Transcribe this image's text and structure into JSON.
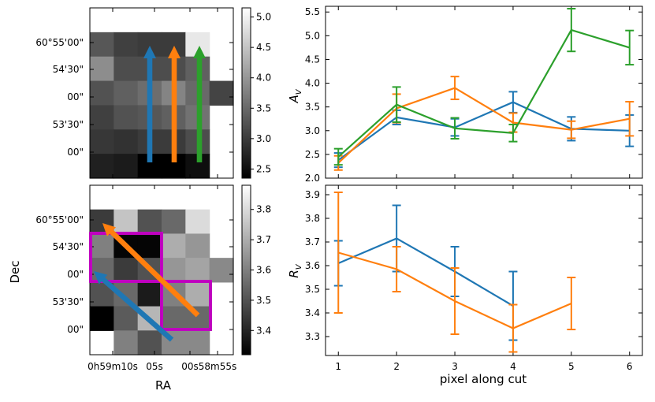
{
  "chart_data": [
    {
      "type": "heatmap",
      "panel": "top-left image",
      "colorbar": {
        "min": 2.35,
        "max": 5.15,
        "ticks": [
          "2.5",
          "3.0",
          "3.5",
          "4.0",
          "4.5",
          "5.0"
        ],
        "tick_values": [
          2.5,
          3.0,
          3.5,
          4.0,
          4.5,
          5.0
        ]
      },
      "dec_ticks": [
        "60°55'00\"",
        "54'30\"",
        "00\"",
        "53'30\"",
        "00\""
      ],
      "values": [
        [
          null,
          null,
          null,
          null,
          null,
          null
        ],
        [
          3.3,
          3.05,
          3.0,
          3.0,
          4.9,
          null
        ],
        [
          3.9,
          3.2,
          3.2,
          3.2,
          3.4,
          null
        ],
        [
          3.25,
          3.4,
          3.55,
          3.8,
          3.5,
          3.1
        ],
        [
          3.05,
          3.25,
          3.3,
          3.4,
          3.6,
          null
        ],
        [
          2.95,
          2.9,
          3.0,
          3.0,
          3.2,
          null
        ],
        [
          2.7,
          2.65,
          2.35,
          2.35,
          2.5,
          null
        ]
      ],
      "arrows": [
        {
          "color": "#1f77b4",
          "direction": "up"
        },
        {
          "color": "#ff7f0e",
          "direction": "up"
        },
        {
          "color": "#2ca02c",
          "direction": "up"
        }
      ]
    },
    {
      "type": "heatmap",
      "panel": "bottom-left image",
      "colorbar": {
        "min": 3.32,
        "max": 3.88,
        "ticks": [
          "3.4",
          "3.5",
          "3.6",
          "3.7",
          "3.8"
        ],
        "tick_values": [
          3.4,
          3.5,
          3.6,
          3.7,
          3.8
        ]
      },
      "dec_ticks": [
        "60°55'00\"",
        "54'30\"",
        "00\"",
        "53'30\"",
        "00\""
      ],
      "ra_ticks": [
        "0h59m10s",
        "05s",
        "00s",
        "58m55s"
      ],
      "xlabel": "RA",
      "ylabel": "Dec",
      "values": [
        [
          null,
          null,
          null,
          null,
          null,
          null
        ],
        [
          3.45,
          3.75,
          3.5,
          3.55,
          3.8,
          null
        ],
        [
          3.6,
          3.33,
          3.33,
          3.7,
          3.65,
          null
        ],
        [
          3.55,
          3.45,
          3.5,
          3.65,
          3.68,
          3.62
        ],
        [
          3.5,
          3.55,
          3.38,
          3.6,
          3.7,
          null
        ],
        [
          3.32,
          3.52,
          3.72,
          3.55,
          3.55,
          null
        ],
        [
          null,
          3.6,
          3.5,
          3.62,
          3.62,
          null
        ]
      ],
      "arrows": [
        {
          "color": "#ff7f0e",
          "direction": "up-left"
        },
        {
          "color": "#1f77b4",
          "direction": "up-left"
        }
      ],
      "box_color": "#bf00bf"
    },
    {
      "type": "line",
      "panel": "top-right",
      "ylabel_main": "A",
      "ylabel_sub": "V",
      "x_ticks": [
        "1",
        "2",
        "3",
        "4",
        "5",
        "6"
      ],
      "ylim": [
        2.0,
        5.62
      ],
      "y_ticks": [
        "2.0",
        "2.5",
        "3.0",
        "3.5",
        "4.0",
        "4.5",
        "5.0",
        "5.5"
      ],
      "y_tick_values": [
        2.0,
        2.5,
        3.0,
        3.5,
        4.0,
        4.5,
        5.0,
        5.5
      ],
      "series": [
        {
          "name": "blue",
          "color": "#1f77b4",
          "x": [
            1,
            2,
            3,
            4,
            5,
            6
          ],
          "y": [
            2.38,
            3.28,
            3.07,
            3.6,
            3.04,
            3.0
          ],
          "err": [
            0.15,
            0.15,
            0.18,
            0.22,
            0.25,
            0.33
          ]
        },
        {
          "name": "orange",
          "color": "#ff7f0e",
          "x": [
            1,
            2,
            3,
            4,
            5,
            6
          ],
          "y": [
            2.32,
            3.47,
            3.9,
            3.17,
            3.02,
            3.25
          ],
          "err": [
            0.15,
            0.3,
            0.24,
            0.2,
            0.18,
            0.36
          ]
        },
        {
          "name": "green",
          "color": "#2ca02c",
          "x": [
            1,
            2,
            3,
            4,
            5,
            6
          ],
          "y": [
            2.45,
            3.55,
            3.05,
            2.95,
            5.12,
            4.75
          ],
          "err": [
            0.17,
            0.37,
            0.22,
            0.18,
            0.45,
            0.36
          ]
        }
      ]
    },
    {
      "type": "line",
      "panel": "bottom-right",
      "ylabel_main": "R",
      "ylabel_sub": "V",
      "xlabel": "pixel along cut",
      "x_ticks": [
        "1",
        "2",
        "3",
        "4",
        "5",
        "6"
      ],
      "ylim": [
        3.22,
        3.94
      ],
      "y_ticks": [
        "3.3",
        "3.4",
        "3.5",
        "3.6",
        "3.7",
        "3.8",
        "3.9"
      ],
      "y_tick_values": [
        3.3,
        3.4,
        3.5,
        3.6,
        3.7,
        3.8,
        3.9
      ],
      "series": [
        {
          "name": "blue",
          "color": "#1f77b4",
          "x": [
            1,
            2,
            3,
            4
          ],
          "y": [
            3.61,
            3.715,
            3.575,
            3.43
          ],
          "err": [
            0.095,
            0.14,
            0.105,
            0.145
          ]
        },
        {
          "name": "orange",
          "color": "#ff7f0e",
          "x": [
            1,
            2,
            3,
            4,
            5
          ],
          "y": [
            3.655,
            3.585,
            3.45,
            3.335,
            3.44
          ],
          "err": [
            0.255,
            0.095,
            0.14,
            0.1,
            0.11
          ]
        }
      ]
    }
  ]
}
